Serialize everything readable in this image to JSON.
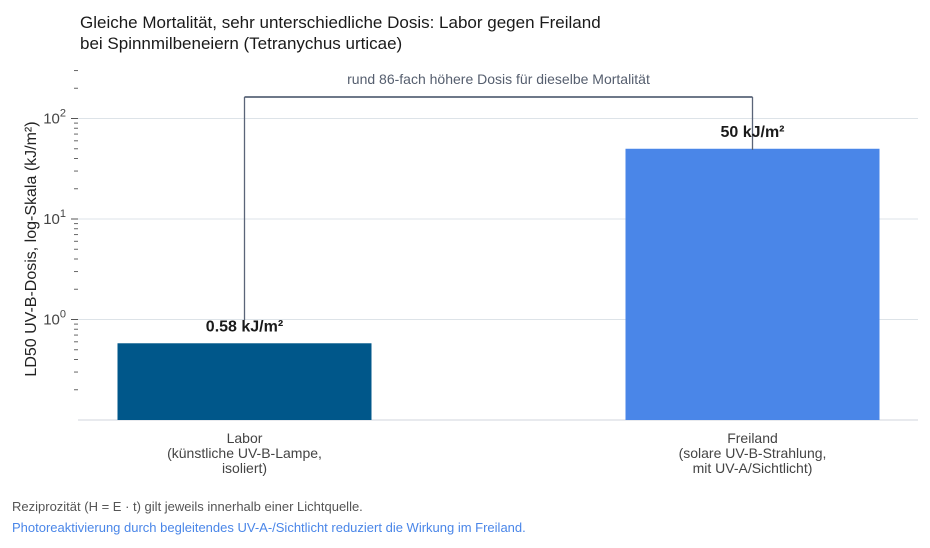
{
  "title_line1": "Gleiche Mortalität, sehr unterschiedliche Dosis: Labor gegen Freiland",
  "title_line2": "bei Spinnmilbeneiern (Tetranychus urticae)",
  "footnote1": "Reziprozität (H = E · t) gilt jeweils innerhalb einer Lichtquelle.",
  "footnote2": "Photoreaktivierung durch begleitendes UV-A-/Sichtlicht reduziert die Wirkung im Freiland.",
  "colors": {
    "labor": "#00578a",
    "freiland": "#4a86e8",
    "bracket": "#5a6478",
    "footnote2": "#4a86e8"
  },
  "chart_data": {
    "type": "bar",
    "title": "Gleiche Mortalität, sehr unterschiedliche Dosis: Labor gegen Freiland bei Spinnmilbeneiern (Tetranychus urticae)",
    "ylabel": "LD50 UV-B-Dosis, log-Skala (kJ/m²)",
    "xlabel": "",
    "yscale": "log",
    "ylim": [
      0.1,
      400
    ],
    "y_ticks": [
      1,
      10,
      100
    ],
    "grid": true,
    "categories": [
      [
        "Labor",
        "(künstliche UV-B-Lampe,",
        "isoliert)"
      ],
      [
        "Freiland",
        "(solare UV-B-Strahlung,",
        "mit UV-A/Sichtlicht)"
      ]
    ],
    "values": [
      0.58,
      50
    ],
    "data_labels": [
      "0.58 kJ/m²",
      "50 kJ/m²"
    ],
    "annotation": "rund 86-fach höhere Dosis für dieselbe Mortalität"
  }
}
